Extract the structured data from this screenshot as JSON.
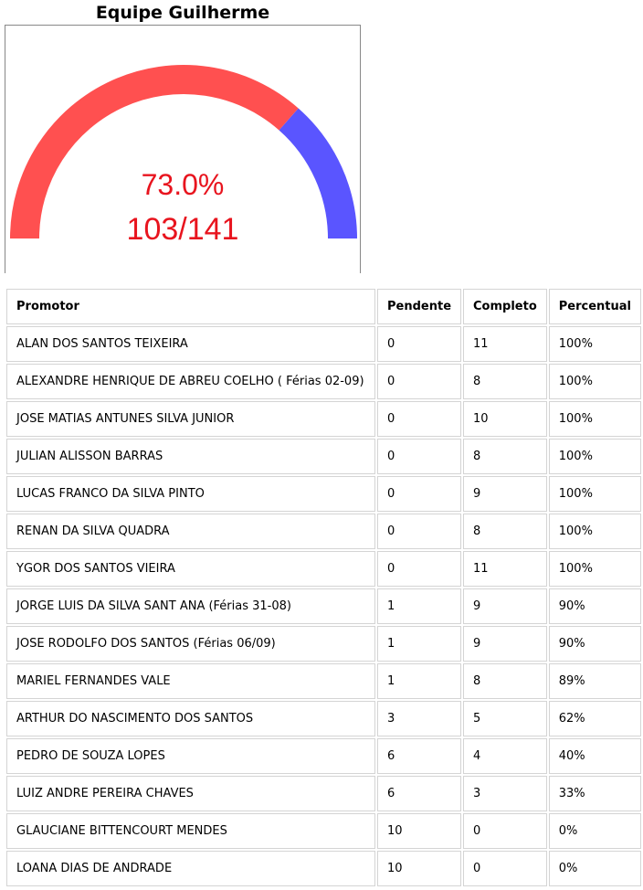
{
  "title": "Equipe Guilherme",
  "gauge": {
    "percent_text": "73.0%",
    "count_text": "103/141",
    "fill_fraction": 0.73,
    "colors": {
      "filled": "#ff5050",
      "remaining": "#5a55ff",
      "text": "#e8141e"
    }
  },
  "table": {
    "headers": [
      "Promotor",
      "Pendente",
      "Completo",
      "Percentual"
    ],
    "rows": [
      [
        "ALAN DOS SANTOS TEIXEIRA",
        "0",
        "11",
        "100%"
      ],
      [
        "ALEXANDRE HENRIQUE DE ABREU COELHO ( Férias 02-09)",
        "0",
        "8",
        "100%"
      ],
      [
        "JOSE MATIAS ANTUNES SILVA JUNIOR",
        "0",
        "10",
        "100%"
      ],
      [
        "JULIAN ALISSON BARRAS",
        "0",
        "8",
        "100%"
      ],
      [
        "LUCAS FRANCO DA SILVA PINTO",
        "0",
        "9",
        "100%"
      ],
      [
        "RENAN DA SILVA QUADRA",
        "0",
        "8",
        "100%"
      ],
      [
        "YGOR DOS SANTOS VIEIRA",
        "0",
        "11",
        "100%"
      ],
      [
        "JORGE LUIS DA SILVA SANT ANA (Férias 31-08)",
        "1",
        "9",
        "90%"
      ],
      [
        "JOSE RODOLFO DOS SANTOS (Férias 06/09)",
        "1",
        "9",
        "90%"
      ],
      [
        "MARIEL FERNANDES VALE",
        "1",
        "8",
        "89%"
      ],
      [
        "ARTHUR DO NASCIMENTO DOS SANTOS",
        "3",
        "5",
        "62%"
      ],
      [
        "PEDRO DE SOUZA LOPES",
        "6",
        "4",
        "40%"
      ],
      [
        "LUIZ ANDRE PEREIRA CHAVES",
        "6",
        "3",
        "33%"
      ],
      [
        "GLAUCIANE BITTENCOURT MENDES",
        "10",
        "0",
        "0%"
      ],
      [
        "LOANA DIAS DE ANDRADE",
        "10",
        "0",
        "0%"
      ]
    ]
  }
}
